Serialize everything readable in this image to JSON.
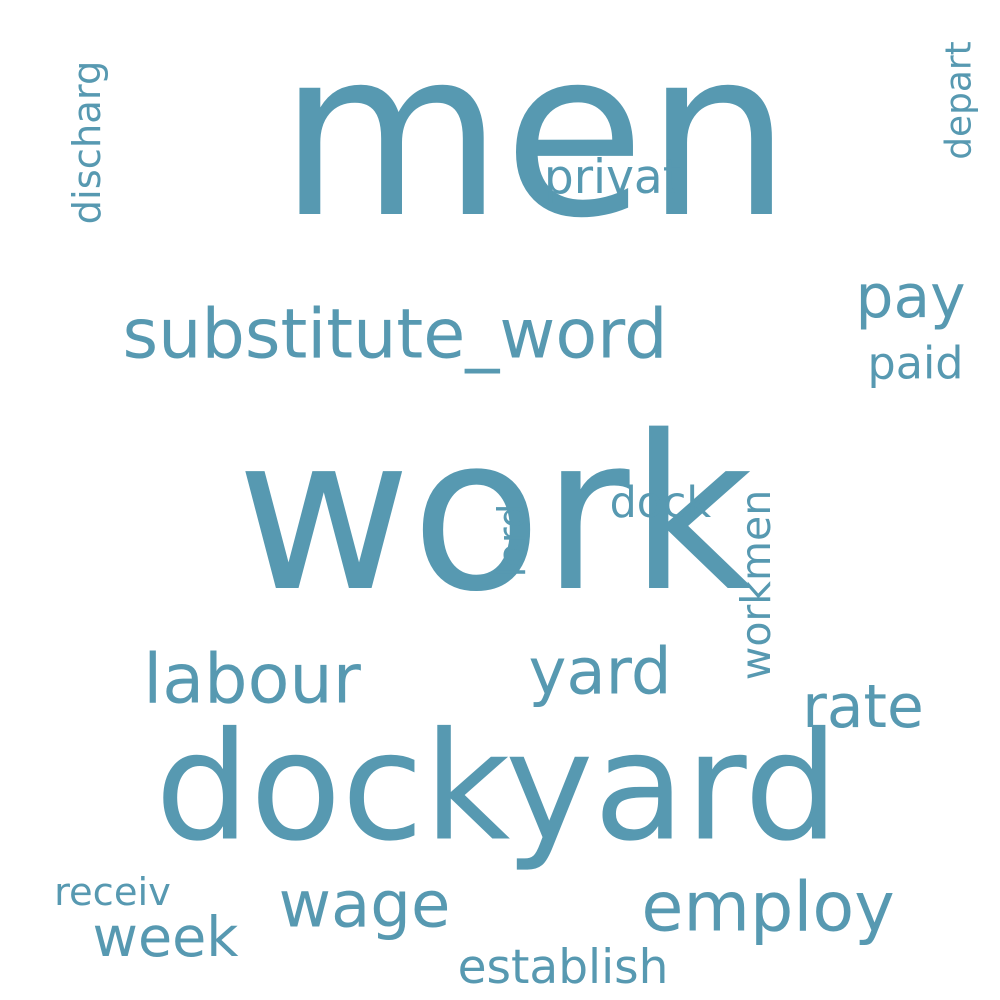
{
  "word_cloud": {
    "color": "#5799b1",
    "background": "#ffffff",
    "words": [
      {
        "text": "men",
        "orientation": "horizontal"
      },
      {
        "text": "work",
        "orientation": "horizontal"
      },
      {
        "text": "dockyard",
        "orientation": "horizontal"
      },
      {
        "text": "substitute_word",
        "orientation": "horizontal"
      },
      {
        "text": "pay",
        "orientation": "horizontal"
      },
      {
        "text": "paid",
        "orientation": "horizontal"
      },
      {
        "text": "privat",
        "orientation": "horizontal"
      },
      {
        "text": "discharg",
        "orientation": "vertical"
      },
      {
        "text": "depart",
        "orientation": "vertical"
      },
      {
        "text": "workmen",
        "orientation": "vertical"
      },
      {
        "text": "lord",
        "orientation": "vertical"
      },
      {
        "text": "dock",
        "orientation": "horizontal"
      },
      {
        "text": "labour",
        "orientation": "horizontal"
      },
      {
        "text": "yard",
        "orientation": "horizontal"
      },
      {
        "text": "rate",
        "orientation": "horizontal"
      },
      {
        "text": "wage",
        "orientation": "horizontal"
      },
      {
        "text": "employ",
        "orientation": "horizontal"
      },
      {
        "text": "week",
        "orientation": "horizontal"
      },
      {
        "text": "receiv",
        "orientation": "horizontal"
      },
      {
        "text": "establish",
        "orientation": "horizontal"
      }
    ]
  }
}
